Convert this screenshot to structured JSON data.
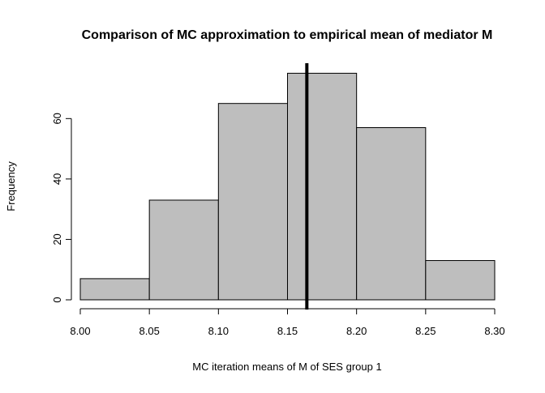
{
  "chart_data": {
    "type": "bar",
    "title": "Comparison of MC approximation to empirical mean of mediator M",
    "xlabel": "MC iteration means of M of SES group 1",
    "ylabel": "Frequency",
    "bins": [
      [
        8.0,
        8.05
      ],
      [
        8.05,
        8.1
      ],
      [
        8.1,
        8.15
      ],
      [
        8.15,
        8.2
      ],
      [
        8.2,
        8.25
      ],
      [
        8.25,
        8.3
      ]
    ],
    "values": [
      7,
      33,
      65,
      75,
      57,
      13
    ],
    "xticks": [
      "8.00",
      "8.05",
      "8.10",
      "8.15",
      "8.20",
      "8.25",
      "8.30"
    ],
    "yticks": [
      "0",
      "20",
      "40",
      "60"
    ],
    "xlim": [
      8.0,
      8.3
    ],
    "ylim": [
      0,
      60
    ],
    "reference_line": {
      "x": 8.164,
      "color": "#000000"
    },
    "bar_color": "#bebebe",
    "grid": false,
    "legend": "none"
  }
}
